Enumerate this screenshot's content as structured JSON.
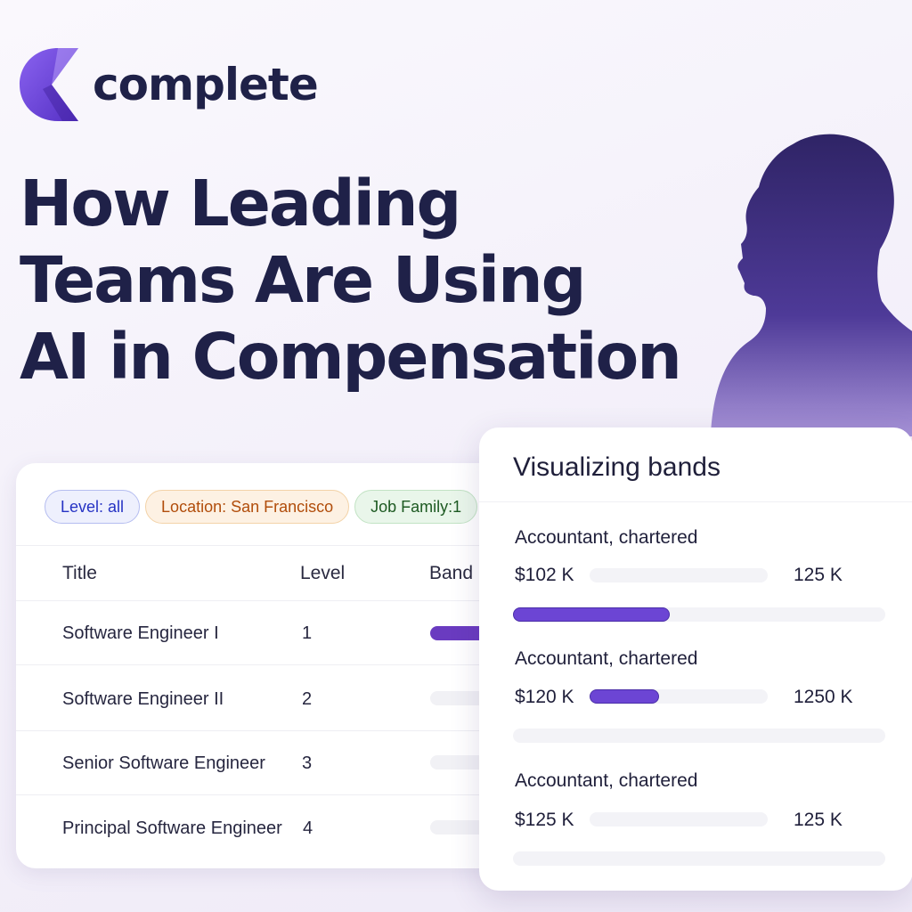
{
  "brand": {
    "name": "complete",
    "logo_icon": "c-logo-icon",
    "accent": "#6a3bc0"
  },
  "headline": {
    "lines": [
      "How Leading",
      "Teams Are Using",
      "AI in Compensation"
    ]
  },
  "illustration": {
    "icon": "person-silhouette-icon",
    "color": "#3a2a75"
  },
  "filters": {
    "level": "Level: all",
    "location": "Location: San Francisco",
    "job_family": "Job Family:1"
  },
  "table": {
    "headers": {
      "title": "Title",
      "level": "Level",
      "band": "Band"
    },
    "rows": [
      {
        "title": "Software Engineer I",
        "level": "1",
        "band_progress": 0.35
      },
      {
        "title": "Software Engineer II",
        "level": "2",
        "band_progress": 0
      },
      {
        "title": "Senior Software Engineer",
        "level": "3",
        "band_progress": 0
      },
      {
        "title": "Principal Software Engineer",
        "level": "4",
        "band_progress": 0
      }
    ]
  },
  "bands": {
    "title": "Visualizing bands",
    "items": [
      {
        "name": "Accountant, chartered",
        "min": "$102 K",
        "max": "125 K",
        "inline_progress": 0,
        "bottom_progress": 0.42
      },
      {
        "name": "Accountant, chartered",
        "min": "$120 K",
        "max": "1250 K",
        "inline_progress": 0.39,
        "bottom_progress": 0
      },
      {
        "name": "Accountant, chartered",
        "min": "$125 K",
        "max": "125 K",
        "inline_progress": 0,
        "bottom_progress": 0
      }
    ]
  }
}
